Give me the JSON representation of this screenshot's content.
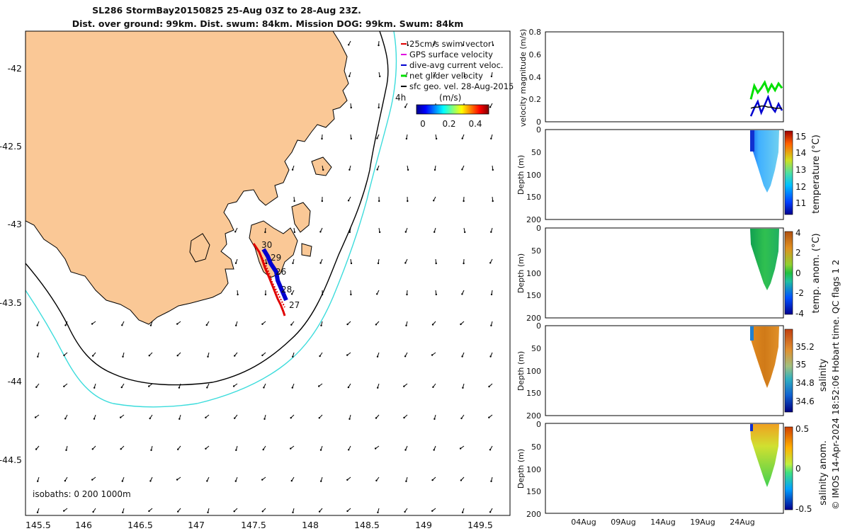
{
  "title": {
    "line1": "SL286 StormBay20150825 25-Aug 03Z to 28-Aug 23Z.",
    "line2": "Dist. over ground: 99km. Dist. swum: 84km. Mission DOG: 99km. Swum: 84km"
  },
  "map": {
    "lon_ticks": [
      "145.5",
      "146",
      "146.5",
      "147",
      "147.5",
      "148",
      "148.5",
      "149",
      "149.5"
    ],
    "lat_ticks": [
      "-42",
      "-42.5",
      "-43",
      "-43.5",
      "-44",
      "-44.5"
    ],
    "legend": [
      {
        "label": "25cm/s swim vector",
        "color": "#e00000"
      },
      {
        "label": "GPS surface velocity",
        "color": "#e000e0"
      },
      {
        "label": "dive-avg current veloc.",
        "color": "#0000d0"
      },
      {
        "label": "net glider velocity",
        "color": "#00e000"
      },
      {
        "label": "sfc geo. vel. 28-Aug-2015",
        "color": "#000000"
      }
    ],
    "duration_label": "4h",
    "colorbar": {
      "unit": "(m/s)",
      "ticks": [
        "0",
        "0.2",
        "0.4"
      ]
    },
    "isobaths_label": "isobaths: 0   200  1000m",
    "day_labels": [
      "30",
      "29",
      "26",
      "28",
      "27"
    ],
    "colors": {
      "land": "#fac896",
      "contour_200": "#000000",
      "contour_1000": "#3cdcdc"
    }
  },
  "panels": {
    "x_ticks": [
      "04Aug",
      "09Aug",
      "14Aug",
      "19Aug",
      "24Aug"
    ],
    "velocity": {
      "ylabel": "velocity magnitude (m/s)",
      "y_ticks": [
        "0",
        "0.2",
        "0.4",
        "0.6",
        "0.8"
      ]
    },
    "depth_label": "Depth (m)",
    "depth_ticks": [
      "0",
      "50",
      "100",
      "150",
      "200"
    ],
    "temperature": {
      "label": "temperature (°C)",
      "ticks": [
        "11",
        "12",
        "13",
        "14",
        "15"
      ]
    },
    "temp_anom": {
      "label": "temp. anom. (°C)",
      "ticks": [
        "-4",
        "-2",
        "0",
        "2",
        "4"
      ]
    },
    "salinity": {
      "label": "salinity",
      "ticks": [
        "34.6",
        "34.8",
        "35",
        "35.2"
      ]
    },
    "salinity_anom": {
      "label": "salinity anom.",
      "ticks": [
        "-0.5",
        "0",
        "0.5"
      ]
    }
  },
  "footer": "© IMOS 14-Apr-2024 18:52:06 Hobart time. QC flags 1  2",
  "chart_data": [
    {
      "type": "scatter",
      "title": "SL286 StormBay20150825 25-Aug 03Z to 28-Aug 23Z.",
      "xlabel": "",
      "ylabel": "",
      "xlim": [
        145.5,
        149.65
      ],
      "ylim": [
        -44.75,
        -41.8
      ],
      "series": [
        {
          "name": "glider track",
          "x": [
            147.51,
            147.58,
            147.62,
            147.66,
            147.7,
            147.74,
            147.78
          ],
          "y": [
            -43.13,
            -43.22,
            -43.3,
            -43.38,
            -43.45,
            -43.51,
            -43.57
          ]
        }
      ]
    },
    {
      "type": "line",
      "title": "velocity magnitude (m/s)",
      "ylim": [
        0,
        0.8
      ],
      "series": [
        {
          "name": "net glider velocity",
          "values": [
            0.2,
            0.32,
            0.26,
            0.3,
            0.35,
            0.27,
            0.33,
            0.28,
            0.34,
            0.3
          ]
        },
        {
          "name": "dive-avg current veloc.",
          "values": [
            0.05,
            0.12,
            0.18,
            0.08,
            0.15,
            0.22,
            0.13,
            0.09,
            0.16,
            0.1
          ]
        },
        {
          "name": "sfc geo. vel.",
          "values": [
            0.12,
            0.13,
            0.13,
            0.14,
            0.14,
            0.13,
            0.13,
            0.12,
            0.12,
            0.12
          ]
        }
      ]
    },
    {
      "type": "heatmap",
      "title": "temperature (°C)",
      "ylim": [
        200,
        0
      ],
      "colorbar": [
        10.5,
        15.2
      ]
    },
    {
      "type": "heatmap",
      "title": "temp. anom. (°C)",
      "ylim": [
        200,
        0
      ],
      "colorbar": [
        -4,
        4
      ]
    },
    {
      "type": "heatmap",
      "title": "salinity",
      "ylim": [
        200,
        0
      ],
      "colorbar": [
        34.5,
        35.35
      ]
    },
    {
      "type": "heatmap",
      "title": "salinity anom.",
      "ylim": [
        200,
        0
      ],
      "colorbar": [
        -0.5,
        0.5
      ]
    }
  ]
}
